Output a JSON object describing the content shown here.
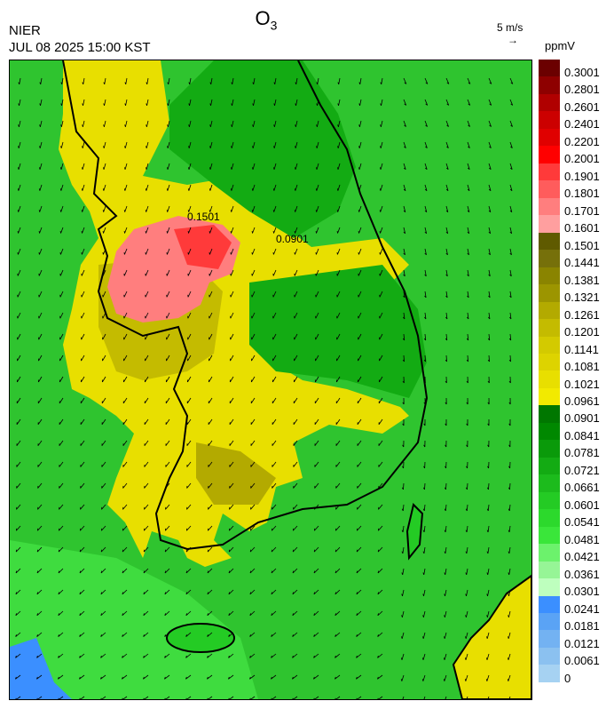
{
  "title": {
    "main": "O",
    "sub": "3"
  },
  "org": "NIER",
  "datetime": "JUL 08 2025 15:00 KST",
  "wind_reference": {
    "label": "5 m/s",
    "arrow": "→"
  },
  "unit": "ppmV",
  "contour_labels": [
    "0.0901",
    "0.1501"
  ],
  "colorbar": {
    "labels": [
      "0.3001",
      "0.2801",
      "0.2601",
      "0.2401",
      "0.2201",
      "0.2001",
      "0.1901",
      "0.1801",
      "0.1701",
      "0.1601",
      "0.1501",
      "0.1441",
      "0.1381",
      "0.1321",
      "0.1261",
      "0.1201",
      "0.1141",
      "0.1081",
      "0.1021",
      "0.0961",
      "0.0901",
      "0.0841",
      "0.0781",
      "0.0721",
      "0.0661",
      "0.0601",
      "0.0541",
      "0.0481",
      "0.0421",
      "0.0361",
      "0.0301",
      "0.0241",
      "0.0181",
      "0.0121",
      "0.0061",
      "0"
    ],
    "colors": [
      "#6b0000",
      "#8e0000",
      "#b00000",
      "#cc0000",
      "#e00000",
      "#ff0000",
      "#ff3a3a",
      "#ff5c5c",
      "#ff7e7e",
      "#ff9f9f",
      "#5f5a00",
      "#76700a",
      "#8a8400",
      "#9c9500",
      "#b3aa00",
      "#c4bb00",
      "#d3ca00",
      "#ddd300",
      "#e8df00",
      "#f2ea00",
      "#007700",
      "#008800",
      "#0a9a0a",
      "#13ab13",
      "#1cbb1c",
      "#24cb24",
      "#2cd92c",
      "#3ae63a",
      "#6cf26c",
      "#96f596",
      "#beffbe",
      "#3b8fff",
      "#5aa3f5",
      "#73b2f2",
      "#8bc1f0",
      "#a6d2f2"
    ]
  }
}
